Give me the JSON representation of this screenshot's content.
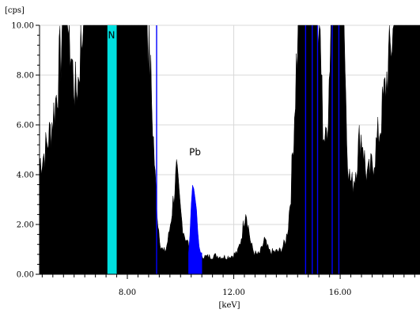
{
  "chart_data": {
    "type": "area",
    "xlabel": "[keV]",
    "ylabel": "[cps]",
    "xlim": [
      4.7,
      19.0
    ],
    "ylim": [
      0,
      10
    ],
    "x_ticks": [
      {
        "value": 8,
        "label": "8.00"
      },
      {
        "value": 12,
        "label": "12.00"
      },
      {
        "value": 16,
        "label": "16.00"
      }
    ],
    "y_ticks": [
      {
        "value": 0,
        "label": "0.00"
      },
      {
        "value": 2,
        "label": "2.00"
      },
      {
        "value": 4,
        "label": "4.00"
      },
      {
        "value": 6,
        "label": "6.00"
      },
      {
        "value": 8,
        "label": "8.00"
      },
      {
        "value": 10,
        "label": "10.00"
      }
    ],
    "grid": true,
    "series": [
      {
        "fill": "#000000",
        "x": [
          4.7,
          4.9,
          5.1,
          5.3,
          5.5,
          5.55,
          5.65,
          5.75,
          5.85,
          5.95,
          6.05,
          6.15,
          6.25,
          6.35,
          6.45,
          6.55,
          6.65,
          6.75,
          6.85,
          6.95,
          7.05,
          7.15,
          7.25,
          7.3,
          7.5,
          7.7,
          7.75,
          7.85,
          7.95,
          8.05,
          8.15,
          8.25,
          8.35,
          8.45,
          8.55,
          8.65,
          8.75,
          8.85,
          8.95,
          9.05,
          9.15,
          9.25,
          9.35,
          9.45,
          9.55,
          9.65,
          9.75,
          9.85,
          9.95,
          10.05,
          10.15,
          10.25,
          10.35,
          10.45,
          10.55,
          10.65,
          10.75,
          10.85,
          10.95,
          11.15,
          11.35,
          11.55,
          11.75,
          11.95,
          12.15,
          12.25,
          12.35,
          12.45,
          12.55,
          12.65,
          12.75,
          12.85,
          12.95,
          13.05,
          13.15,
          13.25,
          13.35,
          13.55,
          13.75,
          13.95,
          14.05,
          14.15,
          14.25,
          14.35,
          14.45,
          14.55,
          14.65,
          14.75,
          14.85,
          14.95,
          15.05,
          15.15,
          15.25,
          15.35,
          15.45,
          15.55,
          15.65,
          15.75,
          15.85,
          15.95,
          16.05,
          16.15,
          16.25,
          16.35,
          16.45,
          16.55,
          16.65,
          16.75,
          16.85,
          16.95,
          17.05,
          17.15,
          17.25,
          17.35,
          17.45,
          17.55,
          17.65,
          17.75,
          17.85,
          17.95,
          18.05,
          18.25,
          18.5,
          18.75,
          19.0
        ],
        "y": [
          4.5,
          4.9,
          5.7,
          6.9,
          8.9,
          10.0,
          10.0,
          10.0,
          9.3,
          8.1,
          7.3,
          7.8,
          9.2,
          10.0,
          10.0,
          10.0,
          10.0,
          10.0,
          10.0,
          10.0,
          10.0,
          10.0,
          10.0,
          10.0,
          10.0,
          10.0,
          10.0,
          10.0,
          10.0,
          10.0,
          10.0,
          10.0,
          10.0,
          10.0,
          10.0,
          10.0,
          10.0,
          8.6,
          6.1,
          3.8,
          2.1,
          1.2,
          0.9,
          1.0,
          1.5,
          2.3,
          3.2,
          4.1,
          3.0,
          2.1,
          1.6,
          1.3,
          1.1,
          0.95,
          0.85,
          0.8,
          0.75,
          0.75,
          0.7,
          0.72,
          0.75,
          0.7,
          0.7,
          0.75,
          0.9,
          1.3,
          1.9,
          2.7,
          1.9,
          1.2,
          0.9,
          0.8,
          0.8,
          1.0,
          1.4,
          1.1,
          0.9,
          0.9,
          0.95,
          1.3,
          2.0,
          3.4,
          5.6,
          8.4,
          10.0,
          10.0,
          10.0,
          10.0,
          10.0,
          10.0,
          10.0,
          10.0,
          9.5,
          6.0,
          5.2,
          6.8,
          10.0,
          10.0,
          10.0,
          10.0,
          10.0,
          10.0,
          5.5,
          3.9,
          3.6,
          4.0,
          4.8,
          5.6,
          5.4,
          4.2,
          3.9,
          4.2,
          4.6,
          5.1,
          5.6,
          6.3,
          7.1,
          7.9,
          8.7,
          9.5,
          10.0,
          10.0,
          10.0,
          10.0,
          10.0
        ]
      },
      {
        "fill": "#0000ff",
        "x": [
          10.3,
          10.35,
          10.4,
          10.45,
          10.5,
          10.55,
          10.6,
          10.65,
          10.7,
          10.75,
          10.8
        ],
        "y": [
          1.0,
          1.6,
          2.5,
          3.3,
          3.4,
          3.0,
          2.5,
          1.8,
          1.3,
          1.0,
          0.9
        ]
      }
    ],
    "rois": [
      {
        "x_start": 7.25,
        "x_end": 7.6,
        "color": "#00e0e0"
      },
      {
        "x_start": 10.35,
        "x_end": 10.78,
        "color": "#0000ff"
      }
    ],
    "marker_lines": {
      "color": "#0000ff",
      "x": [
        9.1,
        14.7,
        14.95,
        15.15,
        15.7,
        15.95
      ]
    },
    "annotations": [
      {
        "text": "N",
        "x": 7.45,
        "y": 9.6
      },
      {
        "text": "Pb",
        "x": 10.5,
        "y": 4.9
      }
    ]
  }
}
